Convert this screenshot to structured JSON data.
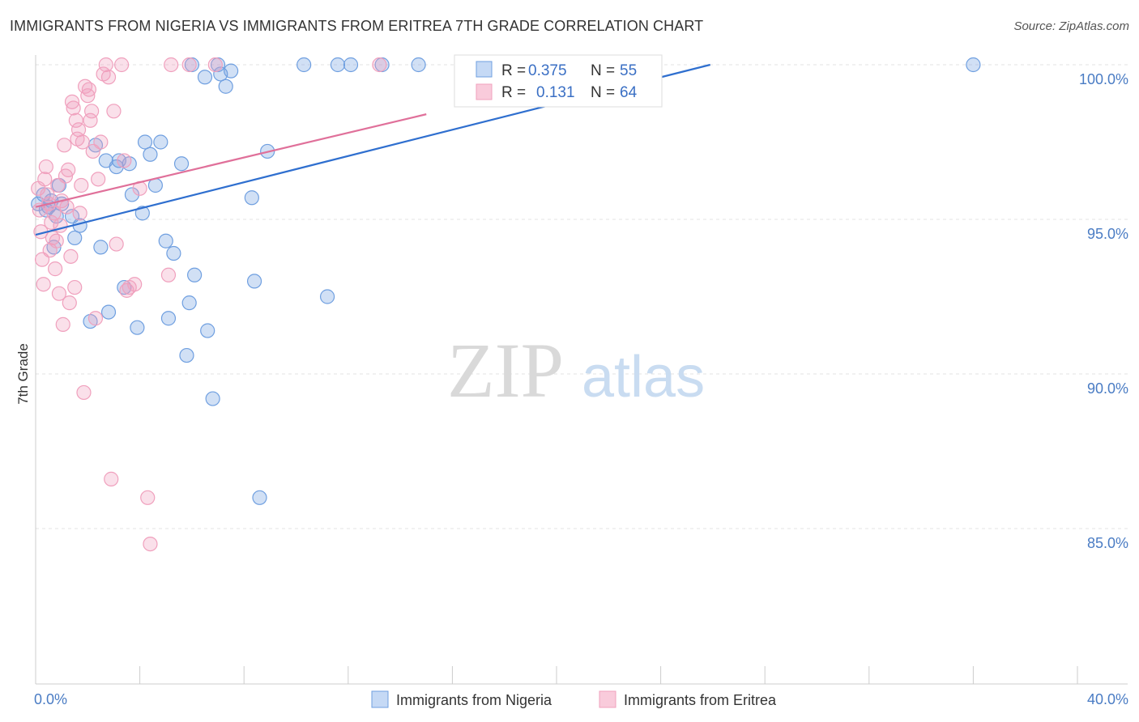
{
  "chart_data": {
    "type": "scatter",
    "title": "IMMIGRANTS FROM NIGERIA VS IMMIGRANTS FROM ERITREA 7TH GRADE CORRELATION CHART",
    "source": "Source: ZipAtlas.com",
    "ylabel": "7th Grade",
    "xlim": [
      0,
      40
    ],
    "ylim": [
      80.5,
      101.0
    ],
    "x_tick_labels": [
      "0.0%",
      "40.0%"
    ],
    "y_ticks": [
      {
        "value": 100,
        "label": "100.0%"
      },
      {
        "value": 95,
        "label": "95.0%"
      },
      {
        "value": 90,
        "label": "90.0%"
      },
      {
        "value": 85,
        "label": "85.0%"
      }
    ],
    "legend": {
      "r_label": "R =",
      "n_label": "N =",
      "entries": [
        {
          "r": "0.375",
          "n": "55"
        },
        {
          "r": "0.131",
          "n": "64"
        }
      ]
    },
    "watermark": {
      "zip": "ZIP",
      "atlas": "atlas"
    },
    "series": [
      {
        "name": "Immigrants from Nigeria",
        "color": "#6f9fe0",
        "line_color": "#2f6fcf",
        "trend": {
          "x": [
            0.0,
            25.9
          ],
          "y": [
            94.5,
            100.0
          ]
        },
        "points": [
          [
            0.1,
            95.5
          ],
          [
            0.3,
            95.8
          ],
          [
            0.4,
            95.3
          ],
          [
            0.5,
            95.4
          ],
          [
            0.6,
            95.6
          ],
          [
            0.7,
            94.1
          ],
          [
            0.8,
            95.1
          ],
          [
            0.9,
            96.1
          ],
          [
            1.0,
            95.5
          ],
          [
            1.4,
            95.1
          ],
          [
            1.5,
            94.4
          ],
          [
            1.7,
            94.8
          ],
          [
            2.1,
            91.7
          ],
          [
            2.3,
            97.4
          ],
          [
            2.5,
            94.1
          ],
          [
            2.7,
            96.9
          ],
          [
            2.8,
            92.0
          ],
          [
            3.1,
            96.7
          ],
          [
            3.2,
            96.9
          ],
          [
            3.4,
            92.8
          ],
          [
            3.6,
            96.8
          ],
          [
            3.7,
            95.8
          ],
          [
            3.9,
            91.5
          ],
          [
            4.1,
            95.2
          ],
          [
            4.2,
            97.5
          ],
          [
            4.4,
            97.1
          ],
          [
            4.6,
            96.1
          ],
          [
            4.8,
            97.5
          ],
          [
            5.0,
            94.3
          ],
          [
            5.1,
            91.8
          ],
          [
            5.3,
            93.9
          ],
          [
            5.6,
            96.8
          ],
          [
            5.8,
            90.6
          ],
          [
            5.9,
            92.3
          ],
          [
            6.0,
            100.0
          ],
          [
            6.1,
            93.2
          ],
          [
            6.5,
            99.6
          ],
          [
            6.6,
            91.4
          ],
          [
            6.8,
            89.2
          ],
          [
            7.0,
            100.0
          ],
          [
            7.1,
            99.7
          ],
          [
            7.3,
            99.3
          ],
          [
            7.5,
            99.8
          ],
          [
            8.3,
            95.7
          ],
          [
            8.4,
            93.0
          ],
          [
            8.6,
            86.0
          ],
          [
            8.9,
            97.2
          ],
          [
            10.3,
            100.0
          ],
          [
            11.2,
            92.5
          ],
          [
            11.6,
            100.0
          ],
          [
            12.1,
            100.0
          ],
          [
            13.3,
            100.0
          ],
          [
            14.7,
            100.0
          ],
          [
            16.7,
            100.0
          ],
          [
            36.0,
            100.0
          ]
        ]
      },
      {
        "name": "Immigrants from Eritrea",
        "color": "#f0a0bd",
        "line_color": "#e0709a",
        "trend": {
          "x": [
            0.0,
            15.0
          ],
          "y": [
            95.4,
            98.4
          ]
        },
        "points": [
          [
            0.1,
            96.0
          ],
          [
            0.15,
            95.3
          ],
          [
            0.2,
            94.6
          ],
          [
            0.25,
            93.7
          ],
          [
            0.3,
            92.9
          ],
          [
            0.35,
            96.3
          ],
          [
            0.4,
            96.7
          ],
          [
            0.45,
            95.8
          ],
          [
            0.5,
            95.5
          ],
          [
            0.55,
            94.0
          ],
          [
            0.6,
            94.9
          ],
          [
            0.65,
            94.4
          ],
          [
            0.7,
            95.2
          ],
          [
            0.75,
            93.4
          ],
          [
            0.8,
            94.3
          ],
          [
            0.85,
            96.1
          ],
          [
            0.9,
            92.6
          ],
          [
            0.95,
            94.8
          ],
          [
            1.0,
            95.6
          ],
          [
            1.05,
            91.6
          ],
          [
            1.1,
            97.4
          ],
          [
            1.15,
            96.4
          ],
          [
            1.2,
            95.4
          ],
          [
            1.25,
            96.6
          ],
          [
            1.3,
            92.3
          ],
          [
            1.35,
            93.8
          ],
          [
            1.4,
            98.8
          ],
          [
            1.45,
            98.6
          ],
          [
            1.5,
            92.8
          ],
          [
            1.55,
            98.2
          ],
          [
            1.6,
            97.6
          ],
          [
            1.65,
            97.9
          ],
          [
            1.7,
            95.2
          ],
          [
            1.75,
            96.1
          ],
          [
            1.8,
            97.5
          ],
          [
            1.85,
            89.4
          ],
          [
            1.9,
            99.3
          ],
          [
            2.0,
            99.0
          ],
          [
            2.05,
            99.2
          ],
          [
            2.1,
            98.2
          ],
          [
            2.15,
            98.5
          ],
          [
            2.2,
            97.2
          ],
          [
            2.3,
            91.8
          ],
          [
            2.4,
            96.3
          ],
          [
            2.5,
            97.5
          ],
          [
            2.6,
            99.7
          ],
          [
            2.7,
            100.0
          ],
          [
            2.8,
            99.6
          ],
          [
            2.9,
            86.6
          ],
          [
            3.0,
            98.5
          ],
          [
            3.1,
            94.2
          ],
          [
            3.3,
            100.0
          ],
          [
            3.4,
            96.9
          ],
          [
            3.5,
            92.7
          ],
          [
            3.6,
            92.8
          ],
          [
            3.8,
            92.9
          ],
          [
            4.0,
            96.0
          ],
          [
            4.3,
            86.0
          ],
          [
            4.4,
            84.5
          ],
          [
            5.1,
            93.2
          ],
          [
            5.2,
            100.0
          ],
          [
            5.9,
            100.0
          ],
          [
            6.9,
            100.0
          ],
          [
            13.2,
            100.0
          ]
        ]
      }
    ]
  }
}
